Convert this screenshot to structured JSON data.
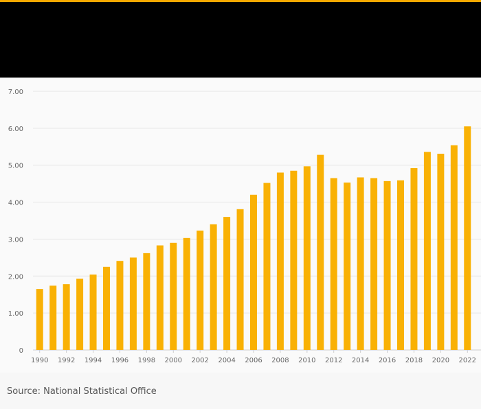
{
  "colors": {
    "accent": "#f5a800",
    "bar": "#f9b104",
    "header_background": "#000000",
    "grid": "#e6e6e6",
    "axis_text": "#666666"
  },
  "source_text": "Source: National Statistical Office",
  "chart_data": {
    "type": "bar",
    "title": "",
    "xlabel": "",
    "ylabel": "",
    "ylim": [
      0,
      7
    ],
    "yticks": [
      "0",
      "1.00",
      "2.00",
      "3.00",
      "4.00",
      "5.00",
      "6.00",
      "7.00"
    ],
    "grid": true,
    "categories": [
      "1990",
      "1991",
      "1992",
      "1993",
      "1994",
      "1995",
      "1996",
      "1997",
      "1998",
      "1999",
      "2000",
      "2001",
      "2002",
      "2003",
      "2004",
      "2005",
      "2006",
      "2007",
      "2008",
      "2009",
      "2010",
      "2011",
      "2012",
      "2013",
      "2014",
      "2015",
      "2016",
      "2017",
      "2018",
      "2019",
      "2020",
      "2021",
      "2022"
    ],
    "xtick_labels": [
      "1990",
      "1992",
      "1994",
      "1996",
      "1998",
      "2000",
      "2002",
      "2004",
      "2006",
      "2008",
      "2010",
      "2012",
      "2014",
      "2016",
      "2018",
      "2020",
      "2022"
    ],
    "values": [
      1.65,
      1.74,
      1.78,
      1.93,
      2.04,
      2.25,
      2.41,
      2.5,
      2.62,
      2.83,
      2.9,
      3.03,
      3.23,
      3.4,
      3.6,
      3.81,
      4.2,
      4.52,
      4.8,
      4.85,
      4.97,
      5.28,
      4.65,
      4.53,
      4.67,
      4.65,
      4.57,
      4.59,
      4.92,
      5.36,
      5.31,
      5.54,
      6.05
    ]
  }
}
